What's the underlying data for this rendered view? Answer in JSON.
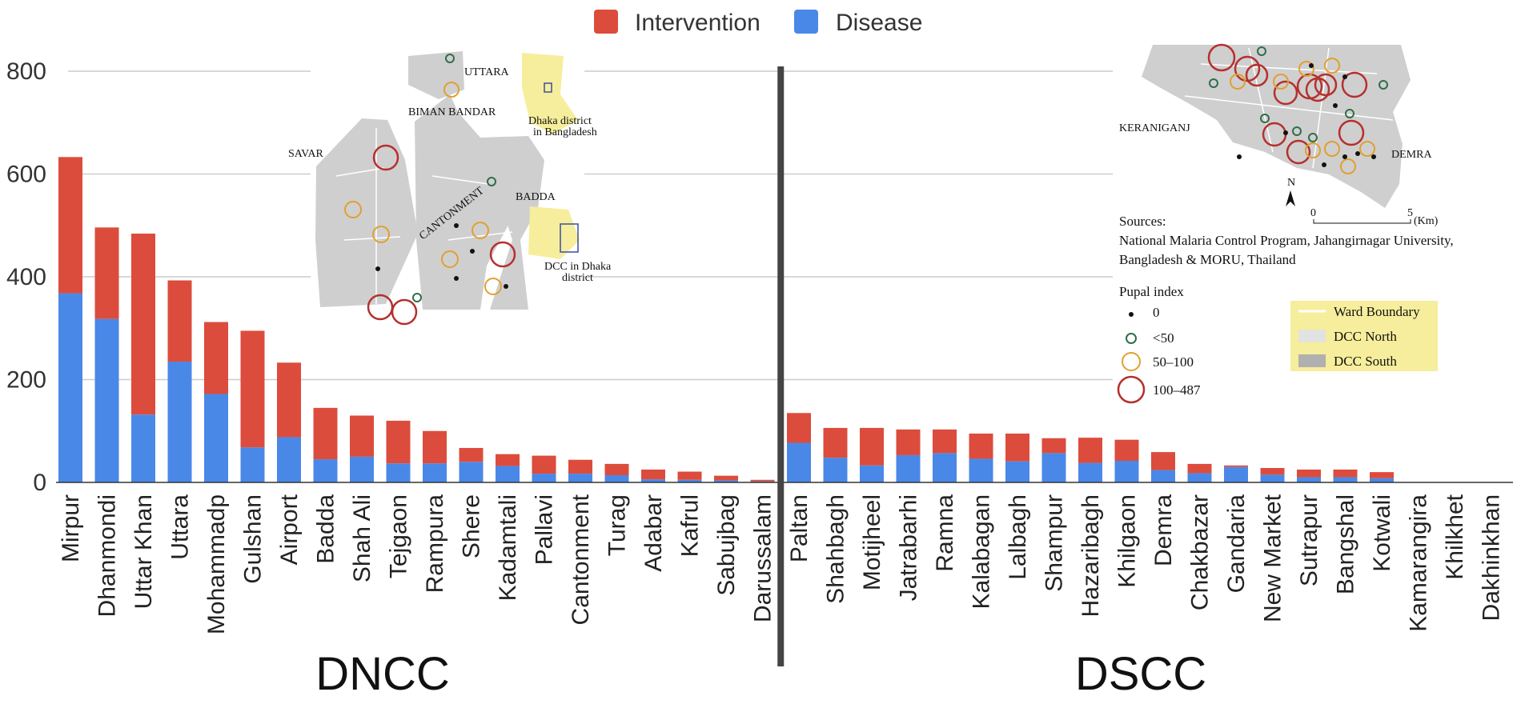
{
  "legend": {
    "items": [
      {
        "name": "Intervention",
        "color": "#dc4c3c"
      },
      {
        "name": "Disease",
        "color": "#4a88e8"
      }
    ]
  },
  "sections": {
    "left": "DNCC",
    "right": "DSCC"
  },
  "chart_data": {
    "type": "bar",
    "stacked": true,
    "ylim": [
      0,
      880
    ],
    "yticks": [
      "0",
      "200",
      "400",
      "600",
      "800"
    ],
    "grid": true,
    "categories": [
      "Mirpur",
      "Dhanmondi",
      "Uttar Khan",
      "Uttara",
      "Mohammadp",
      "Gulshan",
      "Airport",
      "Badda",
      "Shah Ali",
      "Tejgaon",
      "Rampura",
      "Shere",
      "Kadamtali",
      "Pallavi",
      "Cantonment",
      "Turag",
      "Adabar",
      "Kafrul",
      "Sabujbag",
      "Darussalam",
      "Paltan",
      "Shahbagh",
      "Motijheel",
      "Jatrabarhi",
      "Ramna",
      "Kalabagan",
      "Lalbagh",
      "Shampur",
      "Hazaribagh",
      "Khilgaon",
      "Demra",
      "Chakbazar",
      "Gandaria",
      "New Market",
      "Sutrapur",
      "Bangshal",
      "Kotwali",
      "Kamarangira",
      "Khilkhet",
      "Dakhinkhan"
    ],
    "series": [
      {
        "name": "Disease",
        "values": [
          368,
          318,
          132,
          235,
          172,
          68,
          88,
          45,
          50,
          37,
          37,
          40,
          32,
          17,
          17,
          14,
          6,
          5,
          4,
          2,
          77,
          48,
          33,
          53,
          57,
          46,
          41,
          57,
          38,
          42,
          24,
          18,
          30,
          15,
          10,
          10,
          8,
          0,
          0,
          0
        ]
      },
      {
        "name": "Intervention",
        "values": [
          265,
          178,
          352,
          158,
          140,
          227,
          145,
          100,
          80,
          83,
          63,
          27,
          23,
          35,
          27,
          22,
          19,
          16,
          9,
          3,
          58,
          58,
          73,
          50,
          46,
          49,
          54,
          29,
          49,
          41,
          35,
          18,
          3,
          13,
          15,
          15,
          12,
          0,
          0,
          0
        ]
      }
    ],
    "separator_after": "Darussalam"
  },
  "dncc_map": {
    "labels": [
      "UTTARA",
      "BIMAN BANDAR",
      "SAVAR",
      "CANTONMENT",
      "BADDA"
    ],
    "inset_top": [
      "Dhaka district",
      "in Bangladesh"
    ],
    "inset_bottom": [
      "DCC in Dhaka",
      "district"
    ]
  },
  "dscc_map": {
    "labels": [
      "KERANIGANJ",
      "DEMRA"
    ],
    "north": "N",
    "scale": {
      "start": "0",
      "end": "5",
      "unit": "(Km)"
    }
  },
  "sources": {
    "title": "Sources:",
    "lines": [
      "National Malaria Control Program, Jahangirnagar University,",
      "Bangladesh & MORU, Thailand"
    ]
  },
  "pupal_legend": {
    "title": "Pupal index",
    "items": [
      "0",
      "<50",
      "50–100",
      "100–487"
    ]
  },
  "area_legend": {
    "items": [
      "Ward Boundary",
      "DCC North",
      "DCC South"
    ]
  }
}
